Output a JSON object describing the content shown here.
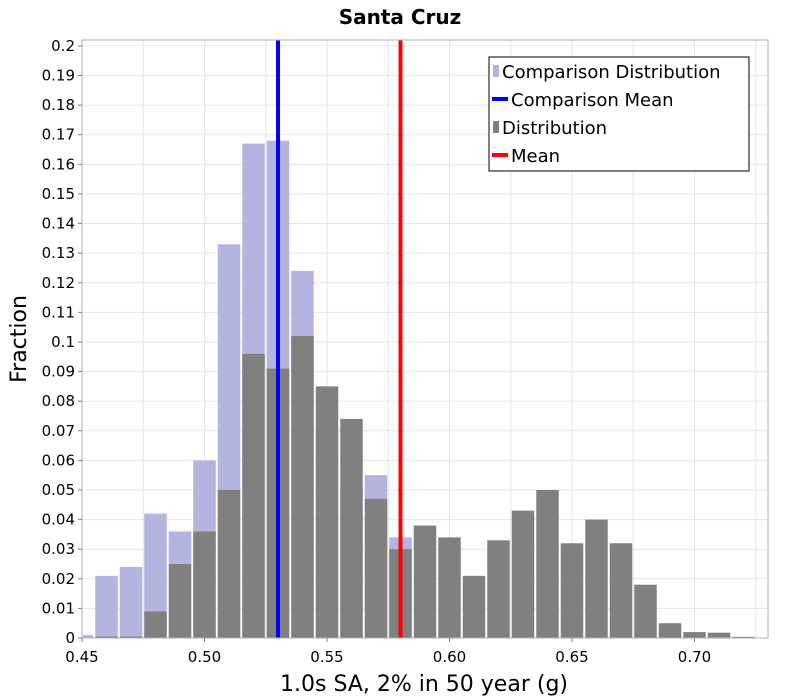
{
  "chart_data": {
    "type": "bar",
    "title": "Santa Cruz",
    "xlabel": "1.0s SA, 2% in 50 year (g)",
    "ylabel": "Fraction",
    "xlim": [
      0.45,
      0.73
    ],
    "ylim": [
      0,
      0.202
    ],
    "bin_width": 0.01,
    "x_ticks": [
      "0.45",
      "0.50",
      "0.55",
      "0.60",
      "0.65",
      "0.70"
    ],
    "y_ticks": [
      "0",
      "0.01",
      "0.02",
      "0.03",
      "0.04",
      "0.05",
      "0.06",
      "0.07",
      "0.08",
      "0.09",
      "0.1",
      "0.11",
      "0.12",
      "0.13",
      "0.14",
      "0.15",
      "0.16",
      "0.17",
      "0.18",
      "0.19",
      "0.2"
    ],
    "grid": true,
    "legend_position": "top-right",
    "series": [
      {
        "name": "Comparison Distribution",
        "color": "#b4b4e0",
        "bin_centers": [
          0.45,
          0.46,
          0.47,
          0.48,
          0.49,
          0.5,
          0.51,
          0.52,
          0.53,
          0.54,
          0.55,
          0.56,
          0.57,
          0.58
        ],
        "values": [
          0.001,
          0.021,
          0.024,
          0.042,
          0.036,
          0.06,
          0.133,
          0.167,
          0.168,
          0.124,
          0.07,
          0.051,
          0.055,
          0.034
        ]
      },
      {
        "name": "Distribution",
        "color": "#808080",
        "bin_centers": [
          0.46,
          0.47,
          0.48,
          0.49,
          0.5,
          0.51,
          0.52,
          0.53,
          0.54,
          0.55,
          0.56,
          0.57,
          0.58,
          0.59,
          0.6,
          0.61,
          0.62,
          0.63,
          0.64,
          0.65,
          0.66,
          0.67,
          0.68,
          0.69,
          0.7,
          0.71,
          0.72
        ],
        "values": [
          0.0005,
          0.0005,
          0.009,
          0.025,
          0.036,
          0.05,
          0.096,
          0.091,
          0.102,
          0.085,
          0.074,
          0.047,
          0.03,
          0.038,
          0.034,
          0.021,
          0.033,
          0.043,
          0.05,
          0.032,
          0.04,
          0.032,
          0.018,
          0.005,
          0.002,
          0.0018,
          0.0004
        ]
      },
      {
        "name": "Comparison Mean",
        "color": "#0000ff",
        "x": 0.53
      },
      {
        "name": "Mean",
        "color": "#ff0000",
        "x": 0.58
      }
    ]
  }
}
